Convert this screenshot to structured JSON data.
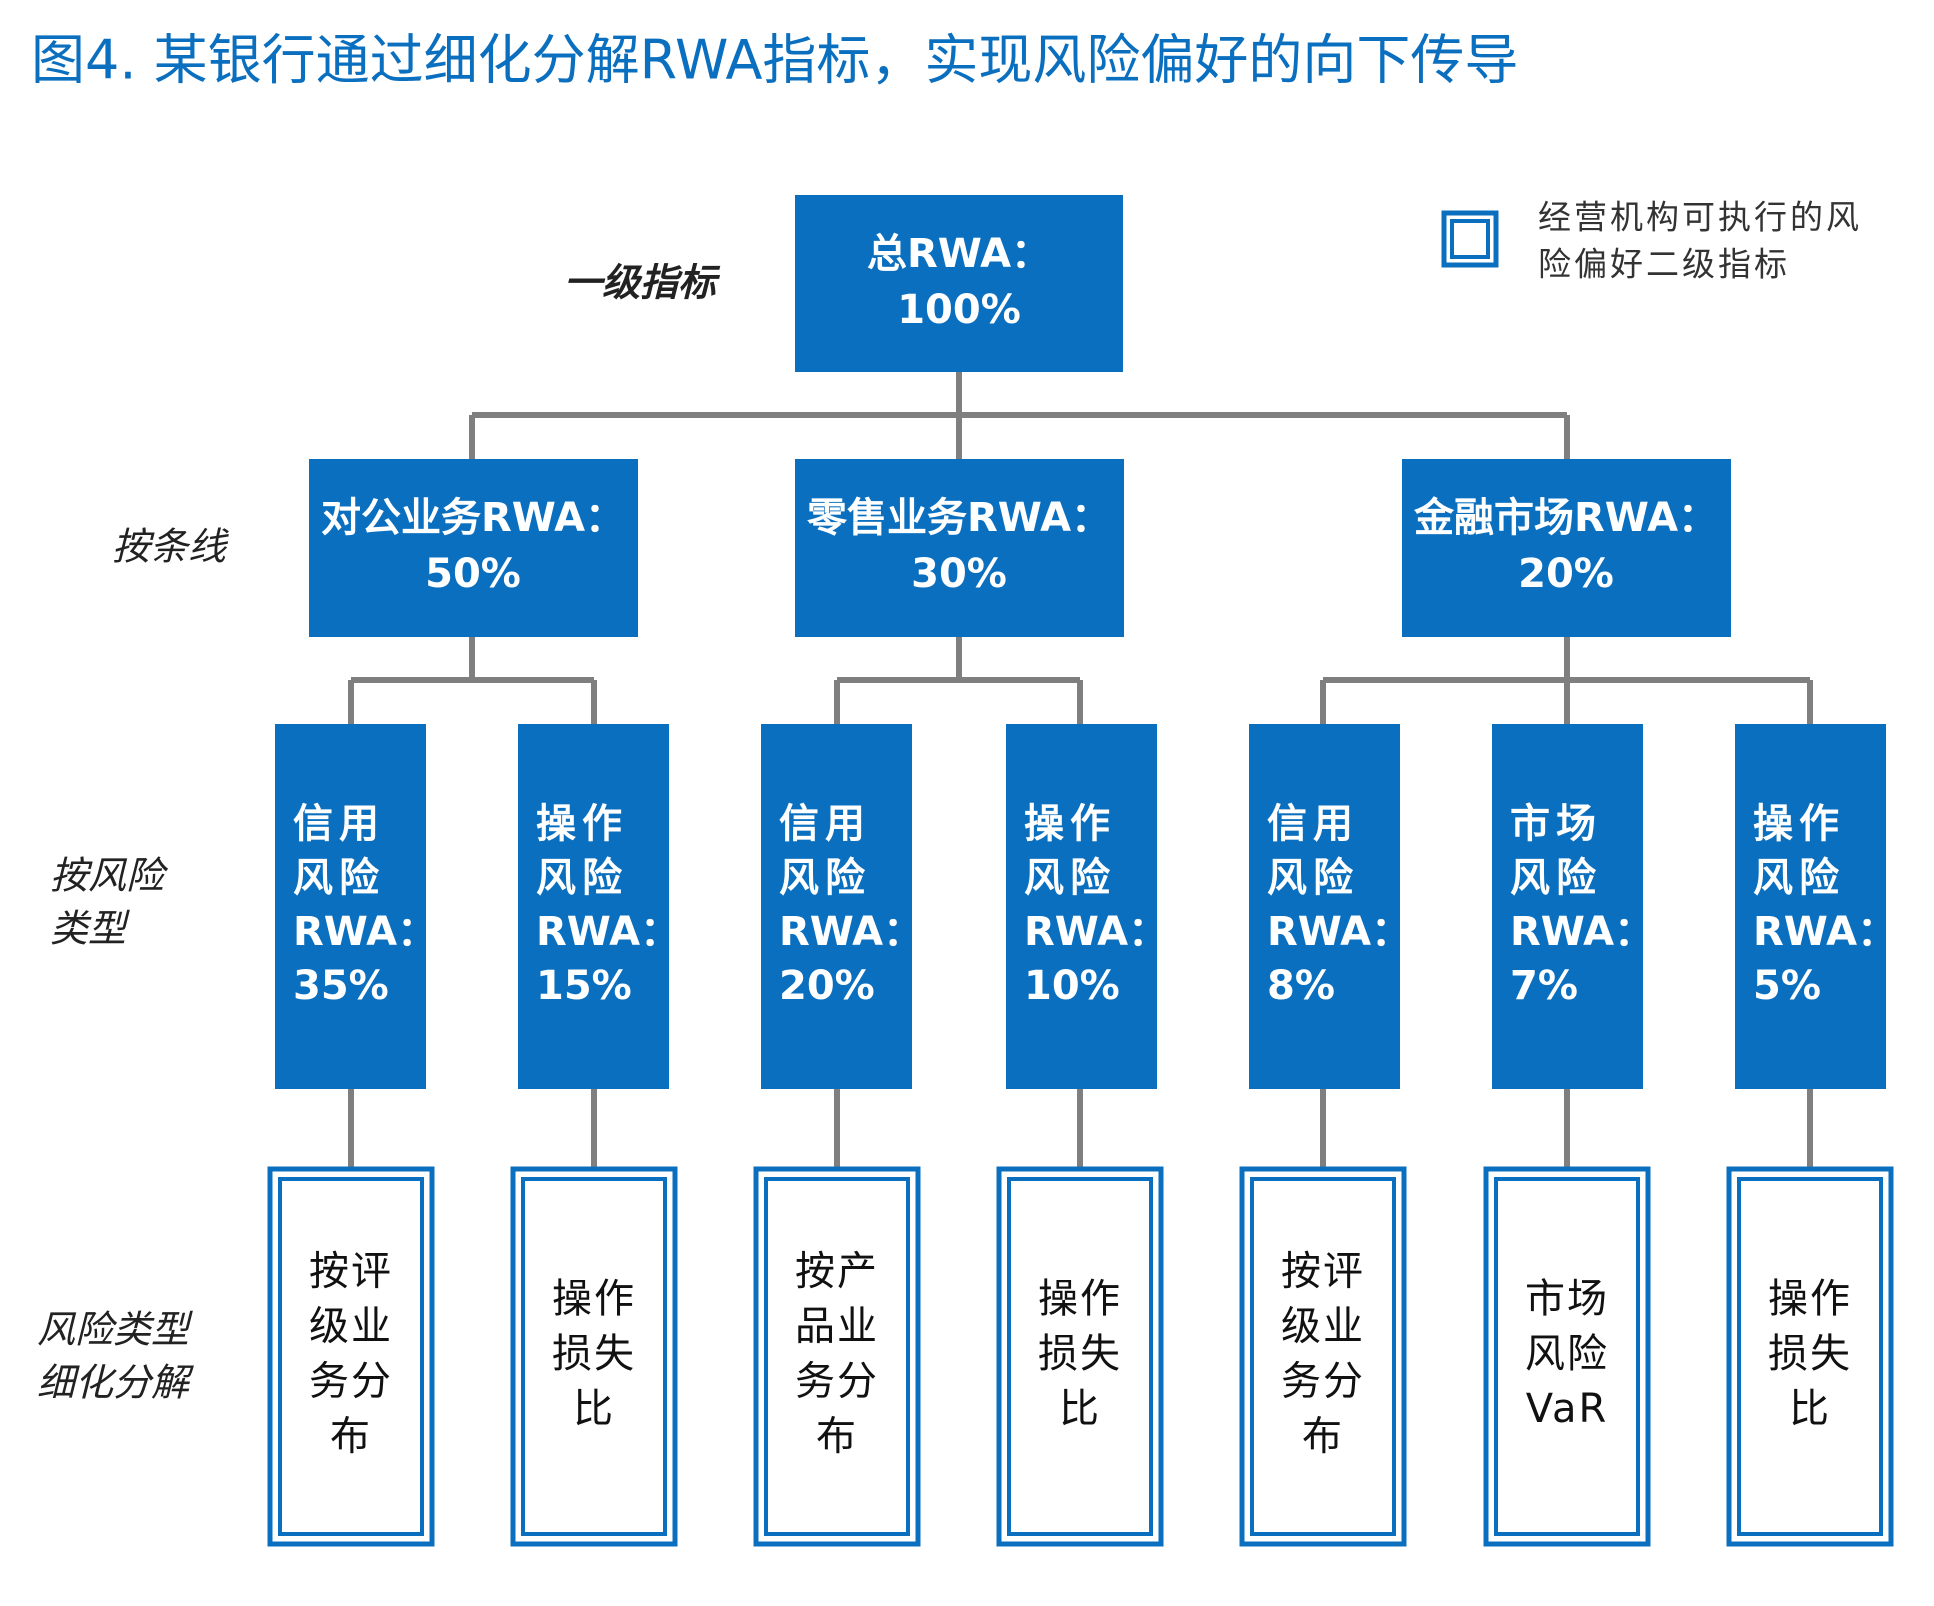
{
  "title": "图4. 某银行通过细化分解RWA指标，实现风险偏好的向下传导",
  "legend": {
    "lines": [
      "经营机构可执行的风",
      "险偏好二级指标"
    ]
  },
  "levels": [
    {
      "lines": [
        "一级指标"
      ]
    },
    {
      "lines": [
        "按条线"
      ]
    },
    {
      "lines": [
        "按风险",
        "类型"
      ]
    },
    {
      "lines": [
        "风险类型",
        "细化分解"
      ]
    }
  ],
  "root": {
    "lines": [
      "总RWA：",
      "100%"
    ]
  },
  "business_lines": [
    {
      "lines": [
        "对公业务RWA：",
        "50%"
      ]
    },
    {
      "lines": [
        "零售业务RWA：",
        "30%"
      ]
    },
    {
      "lines": [
        "金融市场RWA：",
        "20%"
      ]
    }
  ],
  "risk_types": [
    {
      "lines": [
        "信用",
        "风险",
        "RWA：",
        "35%"
      ]
    },
    {
      "lines": [
        "操作",
        "风险",
        "RWA：",
        "15%"
      ]
    },
    {
      "lines": [
        "信用",
        "风险",
        "RWA：",
        "20%"
      ]
    },
    {
      "lines": [
        "操作",
        "风险",
        "RWA：",
        "10%"
      ]
    },
    {
      "lines": [
        "信用",
        "风险",
        "RWA：",
        "8%"
      ]
    },
    {
      "lines": [
        "市场",
        "风险",
        "RWA：",
        "7%"
      ]
    },
    {
      "lines": [
        "操作",
        "风险",
        "RWA：",
        "5%"
      ]
    }
  ],
  "breakdowns": [
    {
      "lines": [
        "按评",
        "级业",
        "务分",
        "布"
      ]
    },
    {
      "lines": [
        "操作",
        "损失",
        "比"
      ]
    },
    {
      "lines": [
        "按产",
        "品业",
        "务分",
        "布"
      ]
    },
    {
      "lines": [
        "操作",
        "损失",
        "比"
      ]
    },
    {
      "lines": [
        "按评",
        "级业",
        "务分",
        "布"
      ]
    },
    {
      "lines": [
        "市场",
        "风险",
        "VaR"
      ]
    },
    {
      "lines": [
        "操作",
        "损失",
        "比"
      ]
    }
  ]
}
